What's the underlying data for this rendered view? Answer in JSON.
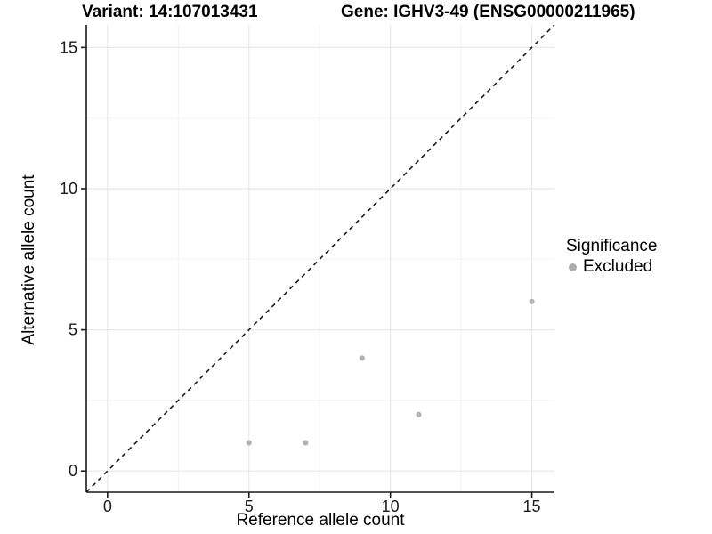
{
  "header": {
    "variant_title": "Variant: 14:107013431",
    "gene_title": "Gene: IGHV3-49 (ENSG00000211965)"
  },
  "chart_data": {
    "type": "scatter",
    "title_left": "Variant: 14:107013431",
    "title_right": "Gene: IGHV3-49 (ENSG00000211965)",
    "xlabel": "Reference allele count",
    "ylabel": "Alternative allele count",
    "xlim": [
      -0.75,
      15.8
    ],
    "ylim": [
      -0.75,
      15.8
    ],
    "x_major_ticks": [
      0,
      5,
      10,
      15
    ],
    "y_major_ticks": [
      0,
      5,
      10,
      15
    ],
    "x_minor_ticks": [
      2.5,
      7.5,
      12.5
    ],
    "y_minor_ticks": [
      2.5,
      7.5,
      12.5
    ],
    "grid": true,
    "legend_position": "right",
    "reference_line": {
      "name": "identity-line",
      "equation": "y = x",
      "style": "dashed",
      "color": "#1a1a1a"
    },
    "series": [
      {
        "name": "Excluded",
        "color": "#b3b3b3",
        "points": [
          [
            5,
            1
          ],
          [
            7,
            1
          ],
          [
            9,
            4
          ],
          [
            11,
            2
          ],
          [
            15,
            6
          ]
        ]
      }
    ],
    "legend": {
      "title": "Significance",
      "entries": [
        {
          "label": "Excluded",
          "color": "#adadad"
        }
      ]
    },
    "colors": {
      "major_grid": "#e8e8e8",
      "minor_grid": "#f2f2f2",
      "axis_line": "#1a1a1a",
      "point": "#b3b3b3"
    }
  }
}
